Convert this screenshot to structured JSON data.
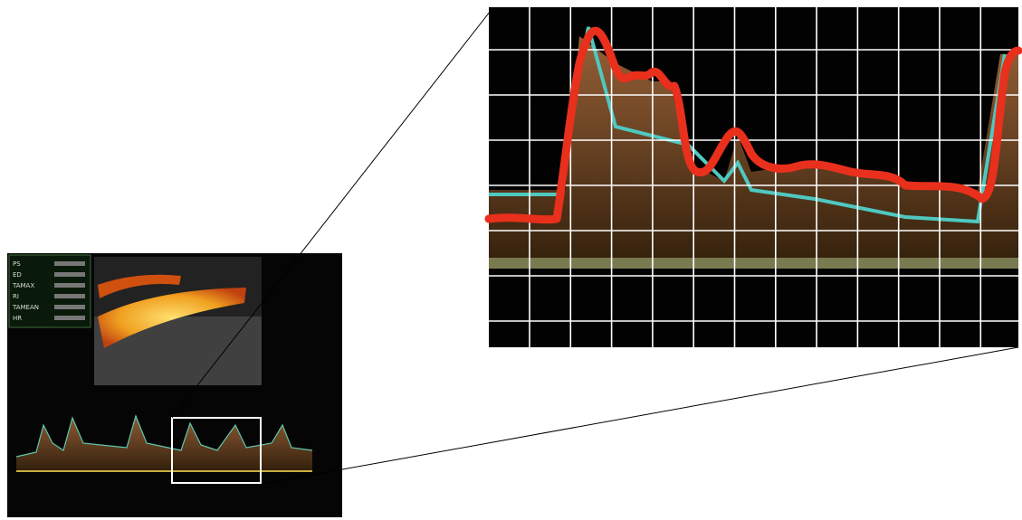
{
  "measurements": {
    "labels": [
      "PS",
      "ED",
      "TAMAX",
      "RI",
      "TAMEAN",
      "HR"
    ]
  }
}
